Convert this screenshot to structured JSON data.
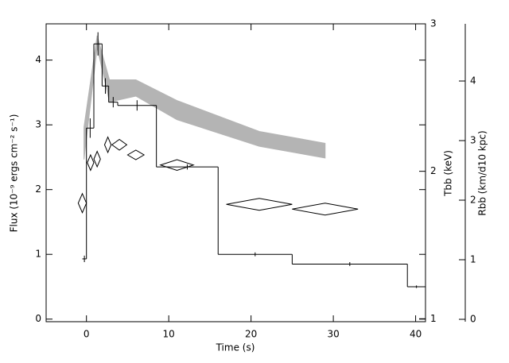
{
  "chart_data": [
    {
      "type": "step",
      "x_label": "Time (s)",
      "y_label": "Flux (10⁻⁹ ergs cm⁻² s⁻¹)",
      "edges": [
        -0.5,
        0,
        0.9,
        1.9,
        2.7,
        3.8,
        8.5,
        16,
        25,
        39,
        41.2
      ],
      "values": [
        0.93,
        2.95,
        4.25,
        3.6,
        3.35,
        3.3,
        2.35,
        1.0,
        0.85,
        0.5
      ],
      "errors": [
        0.05,
        0.15,
        0.18,
        0.12,
        0.08,
        0.08,
        0.04,
        0.03,
        0.03,
        0.02
      ],
      "color": "#000000",
      "xlim": [
        -4.9,
        41.2
      ],
      "xticks": [
        0,
        10,
        20,
        30,
        40
      ],
      "ylim": [
        -0.04,
        4.56
      ],
      "yticks": [
        0,
        1,
        2,
        3,
        4
      ]
    },
    {
      "type": "band",
      "y_label": "Tbb (keV)",
      "x": [
        -0.3,
        1.3,
        2.8,
        6,
        11,
        21,
        29
      ],
      "upper": [
        2.3,
        2.92,
        2.62,
        2.62,
        2.48,
        2.27,
        2.19
      ],
      "lower": [
        2.08,
        2.84,
        2.47,
        2.51,
        2.35,
        2.17,
        2.09
      ],
      "color": "#b4b4b4",
      "ylim": [
        0.98,
        3.0
      ],
      "yticks": [
        1,
        2,
        3
      ]
    },
    {
      "type": "diamond",
      "y_label": "Rbb (km/d10 kpc)",
      "x": [
        -0.5,
        0.5,
        1.3,
        2.6,
        4,
        6,
        11,
        21,
        29
      ],
      "xerr": [
        0.5,
        0.4,
        0.4,
        0.4,
        0.9,
        1,
        2,
        4,
        4
      ],
      "values": [
        1.95,
        2.63,
        2.69,
        2.93,
        2.93,
        2.76,
        2.59,
        1.93,
        1.85
      ],
      "errors": [
        0.16,
        0.13,
        0.13,
        0.13,
        0.09,
        0.08,
        0.09,
        0.1,
        0.1
      ],
      "color": "#000000",
      "ylim": [
        -0.04,
        4.96
      ],
      "yticks": [
        0,
        1,
        2,
        3,
        4
      ]
    }
  ]
}
